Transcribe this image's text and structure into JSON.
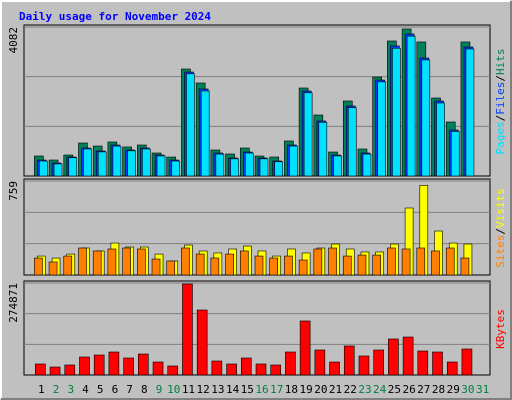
{
  "chart_data": [
    {
      "type": "bar",
      "title": "Daily usage for November 2024",
      "ylim": [
        0,
        4082
      ],
      "yticks": [
        4082
      ],
      "grid_divisions": 3,
      "legend_separator": "/",
      "series": [
        {
          "name": "Hits",
          "color": "#00805c",
          "values": [
            548,
            438,
            575,
            904,
            822,
            932,
            795,
            849,
            630,
            520,
            2931,
            2548,
            712,
            603,
            767,
            548,
            520,
            959,
            2411,
            1671,
            657,
            2055,
            740,
            2712,
            3699,
            4028,
            3672,
            2137,
            1480,
            3672,
            null
          ]
        },
        {
          "name": "Files",
          "color": "#0040ff",
          "values": [
            438,
            356,
            520,
            767,
            685,
            849,
            712,
            767,
            575,
            438,
            2849,
            2384,
            630,
            493,
            657,
            493,
            411,
            849,
            2329,
            1507,
            575,
            1918,
            630,
            2630,
            3562,
            3891,
            3233,
            2055,
            1260,
            3534,
            null
          ]
        },
        {
          "name": "Pages",
          "color": "#00e0ff",
          "values": [
            410,
            330,
            500,
            740,
            660,
            820,
            690,
            740,
            550,
            410,
            2800,
            2330,
            600,
            470,
            630,
            470,
            390,
            820,
            2280,
            1470,
            550,
            1870,
            600,
            2580,
            3500,
            3830,
            3180,
            2000,
            1220,
            3480,
            null
          ]
        }
      ]
    },
    {
      "type": "bar",
      "ylim": [
        0,
        759
      ],
      "yticks": [
        759
      ],
      "grid_divisions": 3,
      "legend_separator": "/",
      "series": [
        {
          "name": "Visits",
          "color": "#ffff00",
          "values": [
            153,
            137,
            169,
            218,
            194,
            258,
            226,
            226,
            169,
            113,
            242,
            194,
            178,
            210,
            234,
            194,
            153,
            210,
            178,
            218,
            250,
            210,
            186,
            186,
            250,
            541,
            724,
            355,
            258,
            250,
            null
          ]
        },
        {
          "name": "Sites",
          "color": "#ff8000",
          "values": [
            137,
            105,
            153,
            218,
            194,
            210,
            218,
            210,
            129,
            113,
            218,
            169,
            137,
            169,
            194,
            153,
            137,
            153,
            121,
            210,
            218,
            153,
            161,
            161,
            218,
            210,
            218,
            194,
            218,
            137,
            null
          ]
        }
      ]
    },
    {
      "type": "bar",
      "ylim": [
        0,
        274871
      ],
      "yticks": [
        274871
      ],
      "grid_divisions": 3,
      "categories": [
        "1",
        "2",
        "3",
        "4",
        "5",
        "6",
        "7",
        "8",
        "9",
        "10",
        "11",
        "12",
        "13",
        "14",
        "15",
        "16",
        "17",
        "18",
        "19",
        "20",
        "21",
        "22",
        "23",
        "24",
        "25",
        "26",
        "27",
        "28",
        "29",
        "30",
        "31"
      ],
      "label_colors": [
        "#000000",
        "#008040",
        "#008040",
        "#000000",
        "#000000",
        "#000000",
        "#000000",
        "#000000",
        "#008040",
        "#008040",
        "#000000",
        "#000000",
        "#000000",
        "#000000",
        "#000000",
        "#008040",
        "#008040",
        "#000000",
        "#000000",
        "#000000",
        "#000000",
        "#000000",
        "#008040",
        "#008040",
        "#000000",
        "#000000",
        "#000000",
        "#000000",
        "#000000",
        "#008040",
        "#008040"
      ],
      "series": [
        {
          "name": "KBytes",
          "color": "#ff0000",
          "values": [
            32900,
            23900,
            29900,
            53800,
            59800,
            68700,
            50800,
            62700,
            38800,
            26900,
            271900,
            194200,
            41800,
            32900,
            50800,
            32900,
            29900,
            68700,
            161400,
            74700,
            38800,
            86700,
            56800,
            74700,
            107600,
            113500,
            71700,
            68700,
            38800,
            77700,
            null
          ]
        }
      ]
    }
  ]
}
